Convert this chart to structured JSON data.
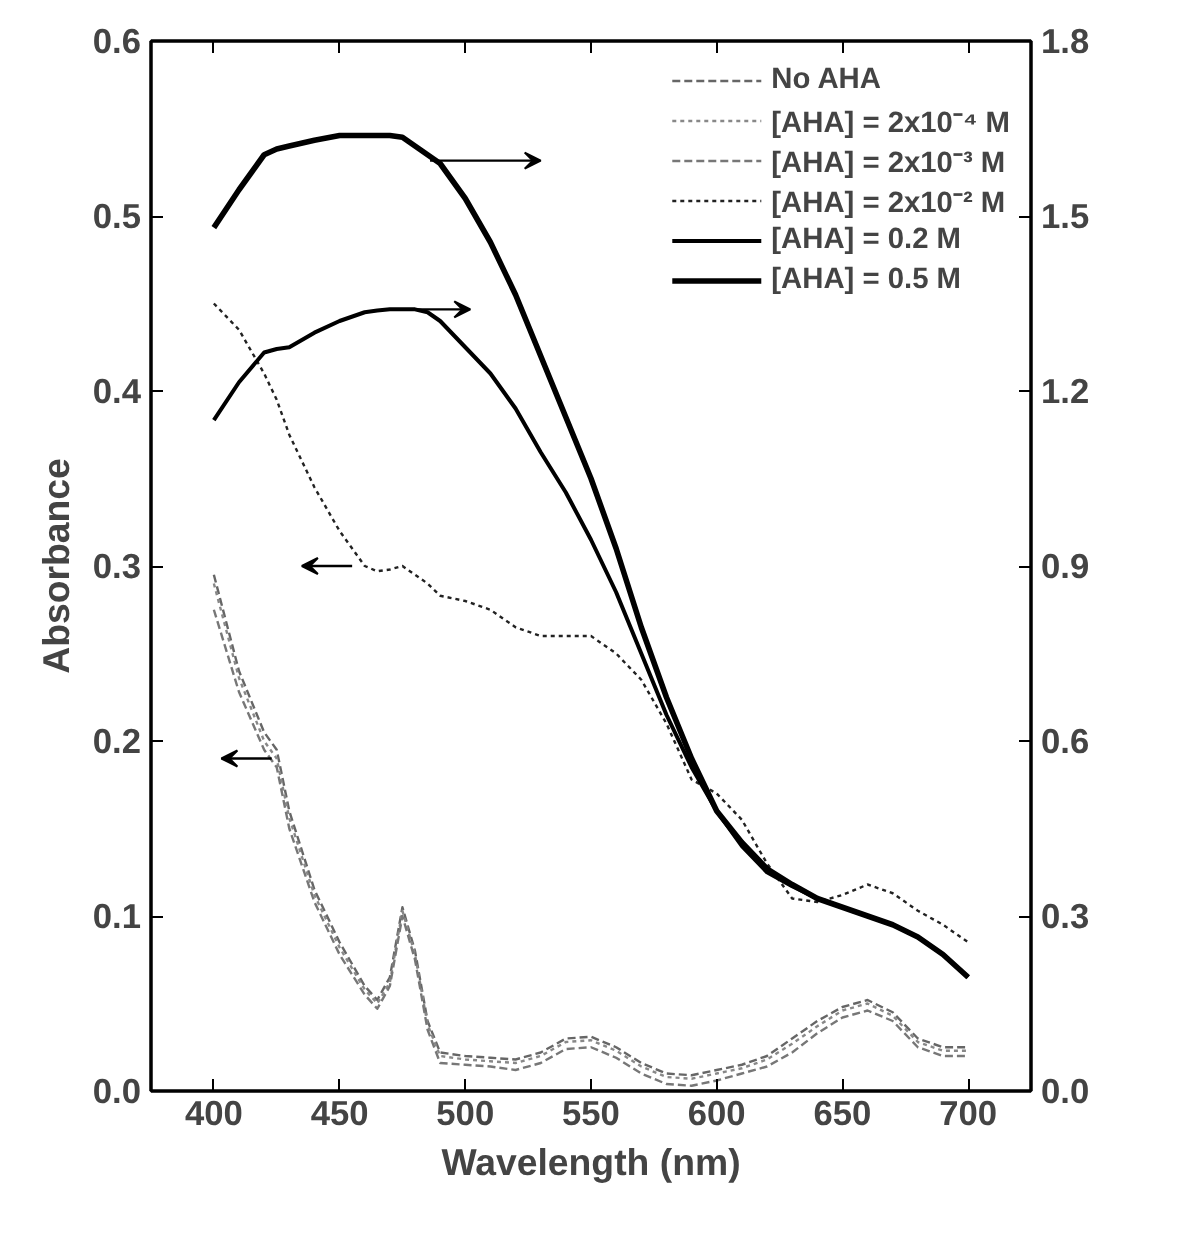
{
  "chart_data": {
    "type": "line",
    "xlabel": "Wavelength (nm)",
    "ylabel": "Absorbance",
    "xlim": [
      375,
      725
    ],
    "xticks": [
      400,
      450,
      500,
      550,
      600,
      650,
      700
    ],
    "ylim": [
      0,
      0.6
    ],
    "yticks": [
      {
        "value": 0,
        "label": "0.0"
      },
      0.1,
      0.2,
      0.3,
      0.4,
      0.5,
      0.6
    ],
    "y2lim": [
      0,
      1.8
    ],
    "y2ticks": [
      {
        "value": 0,
        "label": "0.0"
      },
      0.3,
      0.6,
      0.9,
      1.2,
      1.5,
      1.8
    ],
    "legend": "top right",
    "grid": false,
    "x": [
      400,
      410,
      420,
      425,
      430,
      440,
      450,
      460,
      465,
      470,
      475,
      480,
      485,
      490,
      500,
      510,
      520,
      530,
      540,
      550,
      560,
      570,
      580,
      590,
      600,
      610,
      620,
      630,
      640,
      650,
      660,
      670,
      680,
      690,
      700
    ],
    "series": [
      {
        "name": "No AHA",
        "color": "#666666",
        "line_style": "dashed",
        "values": [
          0.295,
          0.24,
          0.205,
          0.195,
          0.16,
          0.115,
          0.085,
          0.06,
          0.052,
          0.065,
          0.105,
          0.08,
          0.04,
          0.022,
          0.02,
          0.019,
          0.018,
          0.022,
          0.03,
          0.031,
          0.025,
          0.016,
          0.01,
          0.009,
          0.012,
          0.015,
          0.02,
          0.03,
          0.04,
          0.048,
          0.052,
          0.045,
          0.03,
          0.025,
          0.025
        ]
      },
      {
        "name": "[AHA] = 2x10⁻⁴ M",
        "color": "#888888",
        "line_style": "dotted",
        "values": [
          0.29,
          0.236,
          0.2,
          0.19,
          0.156,
          0.112,
          0.082,
          0.058,
          0.05,
          0.062,
          0.103,
          0.078,
          0.038,
          0.02,
          0.018,
          0.017,
          0.016,
          0.02,
          0.028,
          0.029,
          0.023,
          0.014,
          0.008,
          0.007,
          0.01,
          0.013,
          0.018,
          0.027,
          0.037,
          0.046,
          0.05,
          0.043,
          0.028,
          0.023,
          0.023
        ]
      },
      {
        "name": "[AHA] = 2x10⁻³ M",
        "color": "#777777",
        "line_style": "dashed",
        "values": [
          0.275,
          0.228,
          0.195,
          0.185,
          0.15,
          0.108,
          0.078,
          0.055,
          0.047,
          0.06,
          0.1,
          0.075,
          0.035,
          0.016,
          0.015,
          0.014,
          0.012,
          0.016,
          0.024,
          0.025,
          0.019,
          0.01,
          0.004,
          0.003,
          0.006,
          0.01,
          0.014,
          0.022,
          0.033,
          0.042,
          0.046,
          0.04,
          0.025,
          0.02,
          0.02
        ]
      },
      {
        "name": "[AHA] = 2x10⁻² M",
        "color": "#222222",
        "line_style": "dotted",
        "values": [
          0.45,
          0.435,
          0.41,
          0.395,
          0.375,
          0.345,
          0.32,
          0.3,
          0.297,
          0.298,
          0.3,
          0.295,
          0.29,
          0.283,
          0.28,
          0.275,
          0.265,
          0.26,
          0.26,
          0.26,
          0.25,
          0.235,
          0.21,
          0.178,
          0.17,
          0.155,
          0.13,
          0.11,
          0.108,
          0.112,
          0.118,
          0.113,
          0.103,
          0.095,
          0.085
        ]
      },
      {
        "name": "[AHA] = 0.2 M",
        "color": "#000000",
        "line_style": "solid",
        "axis": "y2",
        "values": [
          1.15,
          1.215,
          1.266,
          1.272,
          1.275,
          1.3,
          1.32,
          1.335,
          1.338,
          1.34,
          1.34,
          1.34,
          1.335,
          1.32,
          1.275,
          1.23,
          1.17,
          1.095,
          1.026,
          0.945,
          0.855,
          0.75,
          0.645,
          0.555,
          0.48,
          0.42,
          0.375,
          0.351,
          0.33,
          0.315,
          0.3,
          0.285,
          0.264,
          0.234,
          0.195
        ]
      },
      {
        "name": "[AHA] = 0.5 M",
        "color": "#000000",
        "line_style": "solid",
        "axis": "y2",
        "values": [
          1.48,
          1.545,
          1.605,
          1.615,
          1.62,
          1.63,
          1.638,
          1.638,
          1.638,
          1.638,
          1.635,
          1.62,
          1.605,
          1.59,
          1.53,
          1.455,
          1.365,
          1.26,
          1.155,
          1.05,
          0.93,
          0.795,
          0.675,
          0.57,
          0.48,
          0.426,
          0.381,
          0.354,
          0.33,
          0.315,
          0.3,
          0.285,
          0.264,
          0.234,
          0.195
        ]
      }
    ]
  }
}
